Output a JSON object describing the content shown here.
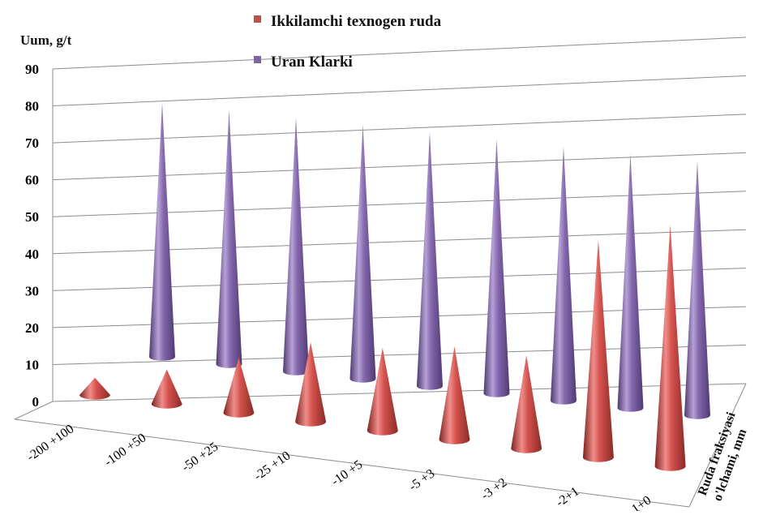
{
  "chart_data": {
    "type": "bar",
    "subtype": "3d-cone",
    "ylabel": "Uum,  g/t",
    "zlabel": [
      "Ruda fraksiyasi",
      "o'lchami, mm"
    ],
    "ylim": [
      0,
      90
    ],
    "yticks": [
      "0",
      "10",
      "20",
      "30",
      "40",
      "50",
      "60",
      "70",
      "80",
      "90"
    ],
    "categories": [
      "-200 +100",
      "-100 +50",
      "-50 +25",
      "-25 +10",
      "-10 +5",
      "-5 +3",
      "-3 +2",
      "-2+1",
      "-1+0"
    ],
    "series": [
      {
        "name": "Ikkilamchi texnogen ruda",
        "color": "#c0504d",
        "values": [
          5,
          10,
          16,
          23,
          24,
          27,
          27,
          63,
          70
        ]
      },
      {
        "name": "Uran Klarki",
        "color": "#8064a2",
        "values": [
          83,
          83,
          83,
          83,
          83,
          83,
          83,
          83,
          83
        ]
      }
    ],
    "legend_position": "top",
    "grid": true
  }
}
